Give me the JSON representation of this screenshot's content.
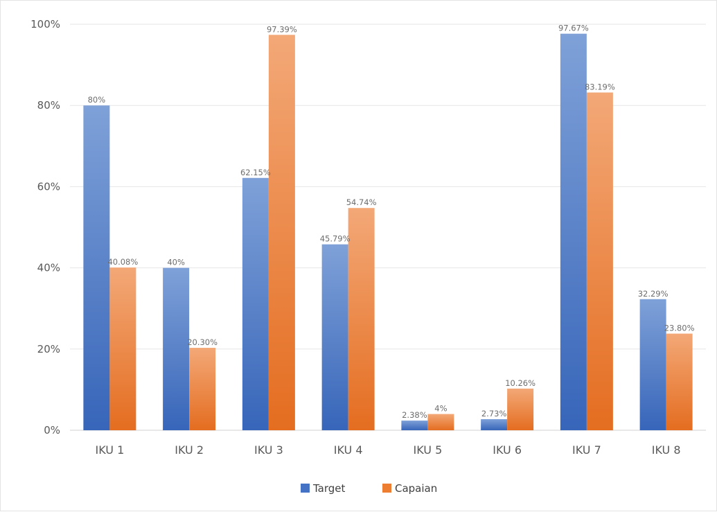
{
  "chart_data": {
    "type": "bar",
    "title": "",
    "xlabel": "",
    "ylabel": "",
    "categories": [
      "IKU 1",
      "IKU 2",
      "IKU 3",
      "IKU 4",
      "IKU 5",
      "IKU 6",
      "IKU 7",
      "IKU 8"
    ],
    "series": [
      {
        "name": "Target",
        "color": "#4472C4",
        "values": [
          80,
          40,
          62.15,
          45.79,
          2.38,
          2.73,
          97.67,
          32.29
        ],
        "labels": [
          "80%",
          "40%",
          "62.15%",
          "45.79%",
          "2.38%",
          "2.73%",
          "97.67%",
          "32.29%"
        ]
      },
      {
        "name": "Capaian",
        "color": "#ED7D31",
        "values": [
          40.08,
          20.3,
          97.39,
          54.74,
          4,
          10.26,
          83.19,
          23.8
        ],
        "labels": [
          "40.08%",
          "20.30%",
          "97.39%",
          "54.74%",
          "4%",
          "10.26%",
          "83.19%",
          "23.80%"
        ]
      }
    ],
    "ylim": [
      0,
      100
    ],
    "yticks": [
      0,
      20,
      40,
      60,
      80,
      100
    ],
    "ytick_labels": [
      "0%",
      "20%",
      "40%",
      "60%",
      "80%",
      "100%"
    ],
    "grid": true,
    "legend_position": "bottom"
  }
}
